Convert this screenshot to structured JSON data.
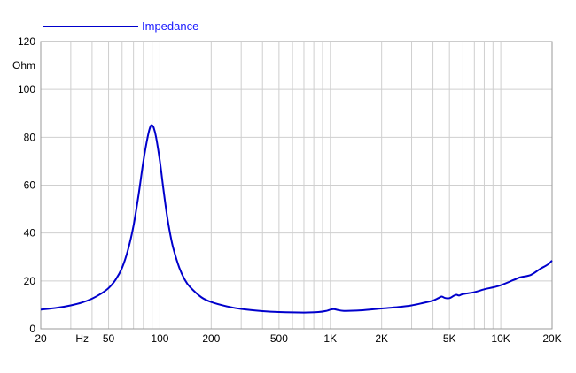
{
  "chart_data": {
    "type": "line",
    "title": "",
    "xlabel": "",
    "ylabel": "Ohm",
    "x_scale": "log",
    "xlim": [
      20,
      20000
    ],
    "ylim": [
      0,
      120
    ],
    "grid": true,
    "legend_position": "top-left",
    "y_ticks": [
      {
        "value": 0,
        "label": "0"
      },
      {
        "value": 20,
        "label": "20"
      },
      {
        "value": 40,
        "label": "40"
      },
      {
        "value": 60,
        "label": "60"
      },
      {
        "value": 80,
        "label": "80"
      },
      {
        "value": 100,
        "label": "100"
      },
      {
        "value": 120,
        "label": "120"
      }
    ],
    "x_ticks": [
      {
        "value": 20,
        "label": "20"
      },
      {
        "value": 35,
        "label": "Hz"
      },
      {
        "value": 50,
        "label": "50"
      },
      {
        "value": 100,
        "label": "100"
      },
      {
        "value": 200,
        "label": "200"
      },
      {
        "value": 500,
        "label": "500"
      },
      {
        "value": 1000,
        "label": "1K"
      },
      {
        "value": 2000,
        "label": "2K"
      },
      {
        "value": 5000,
        "label": "5K"
      },
      {
        "value": 10000,
        "label": "10K"
      },
      {
        "value": 20000,
        "label": "20K"
      }
    ],
    "series": [
      {
        "name": "Impedance",
        "color": "#0000cc",
        "points": [
          [
            20,
            8.0
          ],
          [
            25,
            8.8
          ],
          [
            30,
            9.8
          ],
          [
            35,
            11.0
          ],
          [
            40,
            12.6
          ],
          [
            45,
            14.6
          ],
          [
            50,
            17.0
          ],
          [
            55,
            20.5
          ],
          [
            60,
            25.5
          ],
          [
            65,
            33.0
          ],
          [
            70,
            43.0
          ],
          [
            75,
            56.0
          ],
          [
            80,
            70.0
          ],
          [
            85,
            80.5
          ],
          [
            88,
            84.5
          ],
          [
            90,
            85.0
          ],
          [
            92,
            84.0
          ],
          [
            95,
            80.0
          ],
          [
            100,
            70.0
          ],
          [
            105,
            58.0
          ],
          [
            110,
            47.5
          ],
          [
            115,
            39.5
          ],
          [
            120,
            33.5
          ],
          [
            130,
            25.5
          ],
          [
            140,
            20.5
          ],
          [
            150,
            17.5
          ],
          [
            175,
            13.2
          ],
          [
            200,
            11.2
          ],
          [
            250,
            9.3
          ],
          [
            300,
            8.3
          ],
          [
            400,
            7.4
          ],
          [
            500,
            7.0
          ],
          [
            700,
            6.8
          ],
          [
            850,
            7.0
          ],
          [
            950,
            7.5
          ],
          [
            1000,
            8.0
          ],
          [
            1050,
            8.2
          ],
          [
            1100,
            7.9
          ],
          [
            1200,
            7.5
          ],
          [
            1500,
            7.7
          ],
          [
            2000,
            8.5
          ],
          [
            2500,
            9.1
          ],
          [
            3000,
            9.8
          ],
          [
            3500,
            10.8
          ],
          [
            4000,
            11.8
          ],
          [
            4300,
            12.8
          ],
          [
            4500,
            13.5
          ],
          [
            4700,
            12.9
          ],
          [
            5000,
            12.8
          ],
          [
            5300,
            13.8
          ],
          [
            5500,
            14.2
          ],
          [
            5700,
            13.9
          ],
          [
            6000,
            14.5
          ],
          [
            7000,
            15.3
          ],
          [
            8000,
            16.5
          ],
          [
            9000,
            17.3
          ],
          [
            10000,
            18.2
          ],
          [
            12000,
            20.5
          ],
          [
            13000,
            21.5
          ],
          [
            15000,
            22.5
          ],
          [
            17000,
            25.0
          ],
          [
            18000,
            26.0
          ],
          [
            19000,
            27.0
          ],
          [
            20000,
            28.5
          ]
        ]
      }
    ]
  }
}
